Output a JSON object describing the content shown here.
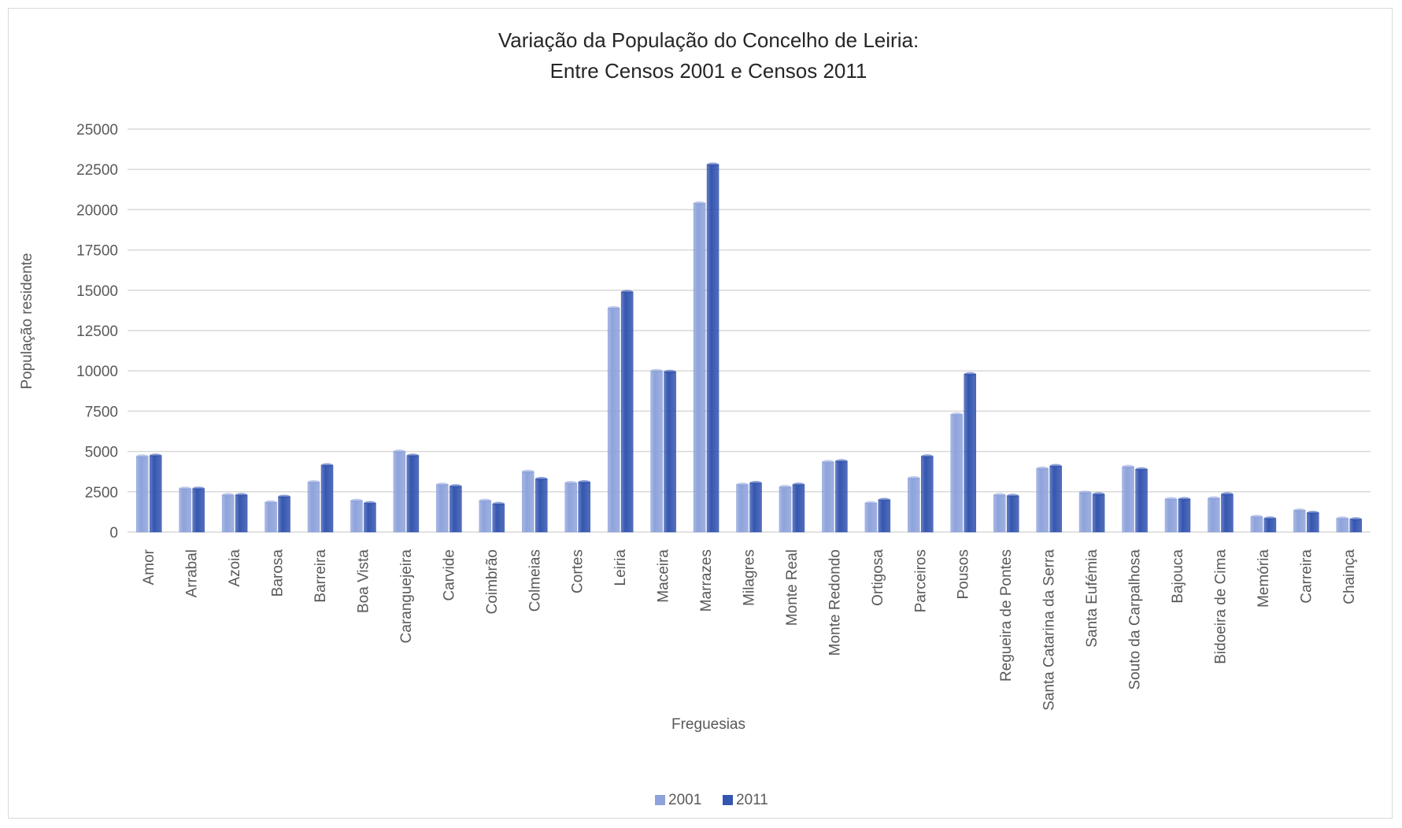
{
  "chart_data": {
    "type": "bar",
    "title_line1": "Variação da População do Concelho de Leiria:",
    "title_line2": "Entre Censos 2001 e Censos 2011",
    "xlabel": "Freguesias",
    "ylabel": "População residente",
    "ylim": [
      0,
      25000
    ],
    "yticks": [
      0,
      2500,
      5000,
      7500,
      10000,
      12500,
      15000,
      17500,
      20000,
      22500,
      25000
    ],
    "grid": true,
    "legend_position": "bottom",
    "categories": [
      "Amor",
      "Arrabal",
      "Azoia",
      "Barosa",
      "Barreira",
      "Boa Vista",
      "Caranguejeira",
      "Carvide",
      "Coimbrão",
      "Colmeias",
      "Cortes",
      "Leiria",
      "Maceira",
      "Marrazes",
      "Milagres",
      "Monte Real",
      "Monte Redondo",
      "Ortigosa",
      "Parceiros",
      "Pousos",
      "Regueira de Pontes",
      "Santa Catarina da Serra",
      "Santa Eufémia",
      "Souto da Carpalhosa",
      "Bajouca",
      "Bidoeira de Cima",
      "Memória",
      "Carreira",
      "Chainça"
    ],
    "series": [
      {
        "name": "2001",
        "color": "#8ea3db",
        "values": [
          4700,
          2700,
          2300,
          1850,
          3100,
          1950,
          5000,
          2950,
          1950,
          3750,
          3050,
          13900,
          10000,
          20400,
          2950,
          2800,
          4350,
          1800,
          3350,
          7300,
          2300,
          3950,
          2450,
          4050,
          2050,
          2100,
          950,
          1350,
          850
        ]
      },
      {
        "name": "2011",
        "color": "#3556b0",
        "values": [
          4750,
          2700,
          2300,
          2200,
          4150,
          1800,
          4750,
          2850,
          1750,
          3300,
          3100,
          14900,
          9950,
          22800,
          3050,
          2950,
          4400,
          2000,
          4700,
          9800,
          2250,
          4100,
          2350,
          3900,
          2050,
          2350,
          850,
          1200,
          800
        ]
      }
    ]
  }
}
